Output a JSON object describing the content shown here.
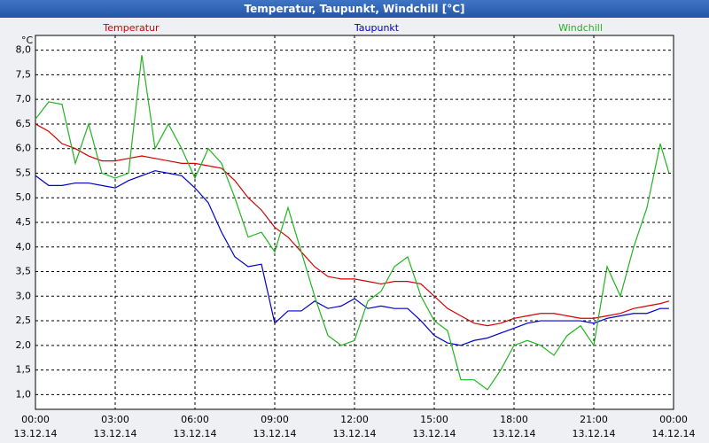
{
  "chart_data": {
    "type": "line",
    "title": "Temperatur, Taupunkt, Windchill [°C]",
    "y_unit": "°C",
    "x": [
      0,
      0.5,
      1,
      1.5,
      2,
      2.5,
      3,
      3.5,
      4,
      4.5,
      5,
      5.5,
      6,
      6.5,
      7,
      7.5,
      8,
      8.5,
      9,
      9.5,
      10,
      10.5,
      11,
      11.5,
      12,
      12.5,
      13,
      13.5,
      14,
      14.5,
      15,
      15.5,
      16,
      16.5,
      17,
      17.5,
      18,
      18.5,
      19,
      19.5,
      20,
      20.5,
      21,
      21.5,
      22,
      22.5,
      23,
      23.5,
      23.83
    ],
    "series": [
      {
        "name": "Temperatur",
        "color": "#d40000",
        "values": [
          6.5,
          6.35,
          6.1,
          6.0,
          5.85,
          5.75,
          5.75,
          5.8,
          5.85,
          5.8,
          5.75,
          5.7,
          5.7,
          5.65,
          5.6,
          5.35,
          5.0,
          4.75,
          4.4,
          4.2,
          3.9,
          3.6,
          3.4,
          3.35,
          3.35,
          3.3,
          3.25,
          3.3,
          3.3,
          3.25,
          3.0,
          2.75,
          2.6,
          2.45,
          2.4,
          2.45,
          2.55,
          2.6,
          2.65,
          2.65,
          2.6,
          2.55,
          2.55,
          2.6,
          2.65,
          2.75,
          2.8,
          2.85,
          2.9
        ]
      },
      {
        "name": "Taupunkt",
        "color": "#0000c8",
        "values": [
          5.45,
          5.25,
          5.25,
          5.3,
          5.3,
          5.25,
          5.2,
          5.35,
          5.45,
          5.55,
          5.5,
          5.45,
          5.2,
          4.9,
          4.3,
          3.8,
          3.6,
          3.65,
          2.45,
          2.7,
          2.7,
          2.9,
          2.75,
          2.8,
          2.95,
          2.75,
          2.8,
          2.75,
          2.75,
          2.5,
          2.2,
          2.05,
          2.0,
          2.1,
          2.15,
          2.25,
          2.35,
          2.45,
          2.5,
          2.5,
          2.5,
          2.5,
          2.45,
          2.55,
          2.6,
          2.65,
          2.65,
          2.75,
          2.75
        ]
      },
      {
        "name": "Windchill",
        "color": "#22b422",
        "values": [
          6.6,
          6.95,
          6.9,
          5.7,
          6.5,
          5.5,
          5.4,
          5.5,
          7.9,
          6.0,
          6.5,
          6.0,
          5.4,
          6.0,
          5.7,
          5.0,
          4.2,
          4.3,
          3.9,
          4.8,
          3.9,
          3.0,
          2.2,
          2.0,
          2.1,
          2.9,
          3.1,
          3.6,
          3.8,
          3.0,
          2.5,
          2.3,
          1.3,
          1.3,
          1.1,
          1.5,
          2.0,
          2.1,
          2.0,
          1.8,
          2.2,
          2.4,
          2.0,
          3.6,
          3.0,
          4.0,
          4.8,
          6.1,
          5.5
        ]
      }
    ],
    "xlim": [
      0,
      24
    ],
    "xticks": [
      {
        "value": 0,
        "label": "00:00"
      },
      {
        "value": 3,
        "label": "03:00"
      },
      {
        "value": 6,
        "label": "06:00"
      },
      {
        "value": 9,
        "label": "09:00"
      },
      {
        "value": 12,
        "label": "12:00"
      },
      {
        "value": 15,
        "label": "15:00"
      },
      {
        "value": 18,
        "label": "18:00"
      },
      {
        "value": 21,
        "label": "21:00"
      },
      {
        "value": 24,
        "label": "00:00"
      }
    ],
    "xtick_dates": [
      "13.12.14",
      "13.12.14",
      "13.12.14",
      "13.12.14",
      "13.12.14",
      "13.12.14",
      "13.12.14",
      "13.12.14",
      "14.12.14"
    ],
    "ylim": [
      0.7,
      8.3
    ],
    "yticks": [
      {
        "value": 1,
        "label": "1,0"
      },
      {
        "value": 1.5,
        "label": "1,5"
      },
      {
        "value": 2,
        "label": "2,0"
      },
      {
        "value": 2.5,
        "label": "2,5"
      },
      {
        "value": 3,
        "label": "3,0"
      },
      {
        "value": 3.5,
        "label": "3,5"
      },
      {
        "value": 4,
        "label": "4,0"
      },
      {
        "value": 4.5,
        "label": "4,5"
      },
      {
        "value": 5,
        "label": "5,0"
      },
      {
        "value": 5.5,
        "label": "5,5"
      },
      {
        "value": 6,
        "label": "6,0"
      },
      {
        "value": 6.5,
        "label": "6,5"
      },
      {
        "value": 7,
        "label": "7,0"
      },
      {
        "value": 7.5,
        "label": "7,5"
      },
      {
        "value": 8,
        "label": "8,0"
      }
    ],
    "grid": true
  }
}
